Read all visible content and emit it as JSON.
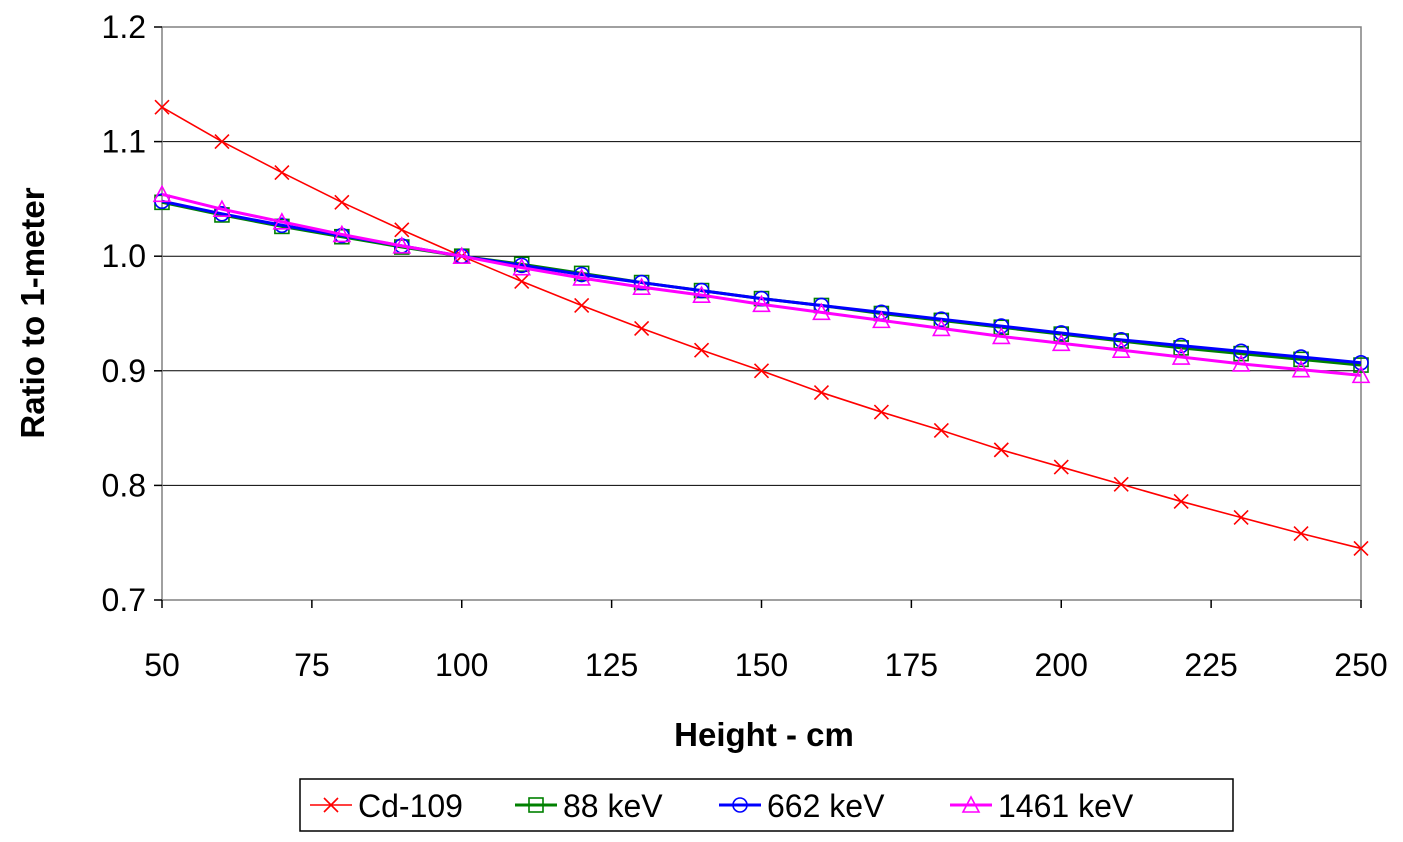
{
  "chart_data": {
    "type": "line",
    "title": "",
    "xlabel": "Height - cm",
    "ylabel": "Ratio to 1-meter",
    "xlim": [
      50,
      250
    ],
    "ylim": [
      0.7,
      1.2
    ],
    "xticks": [
      50,
      75,
      100,
      125,
      150,
      175,
      200,
      225,
      250
    ],
    "xtick_labels": [
      "50",
      "75",
      "100",
      "125",
      "150",
      "175",
      "200",
      "225",
      "250"
    ],
    "yticks": [
      0.7,
      0.8,
      0.9,
      1.0,
      1.1,
      1.2
    ],
    "ytick_labels": [
      "0.7",
      "0.8",
      "0.9",
      "1.0",
      "1.1",
      "1.2"
    ],
    "grid": "horizontal",
    "legend_position": "bottom",
    "x": [
      50,
      60,
      70,
      80,
      90,
      100,
      110,
      120,
      130,
      140,
      150,
      160,
      170,
      180,
      190,
      200,
      210,
      220,
      230,
      240,
      250
    ],
    "series": [
      {
        "name": "Cd-109",
        "color": "#ff0000",
        "marker": "x",
        "values": [
          1.13,
          1.1,
          1.073,
          1.047,
          1.023,
          1.0,
          0.978,
          0.957,
          0.937,
          0.918,
          0.9,
          0.881,
          0.864,
          0.848,
          0.831,
          0.816,
          0.801,
          0.786,
          0.772,
          0.758,
          0.745
        ]
      },
      {
        "name": "88 keV",
        "color": "#008000",
        "marker": "square",
        "values": [
          1.047,
          1.036,
          1.026,
          1.017,
          1.008,
          1.0,
          0.993,
          0.985,
          0.977,
          0.97,
          0.963,
          0.957,
          0.95,
          0.944,
          0.938,
          0.932,
          0.926,
          0.92,
          0.915,
          0.91,
          0.905
        ]
      },
      {
        "name": "662 keV",
        "color": "#0000ff",
        "marker": "circle",
        "values": [
          1.048,
          1.037,
          1.027,
          1.018,
          1.009,
          1.0,
          0.992,
          0.984,
          0.977,
          0.97,
          0.963,
          0.957,
          0.951,
          0.945,
          0.939,
          0.933,
          0.927,
          0.922,
          0.917,
          0.912,
          0.907
        ]
      },
      {
        "name": "1461 keV",
        "color": "#ff00ff",
        "marker": "triangle",
        "values": [
          1.054,
          1.041,
          1.03,
          1.019,
          1.009,
          1.0,
          0.99,
          0.981,
          0.973,
          0.966,
          0.958,
          0.951,
          0.944,
          0.937,
          0.93,
          0.924,
          0.918,
          0.912,
          0.906,
          0.901,
          0.896
        ]
      }
    ]
  }
}
